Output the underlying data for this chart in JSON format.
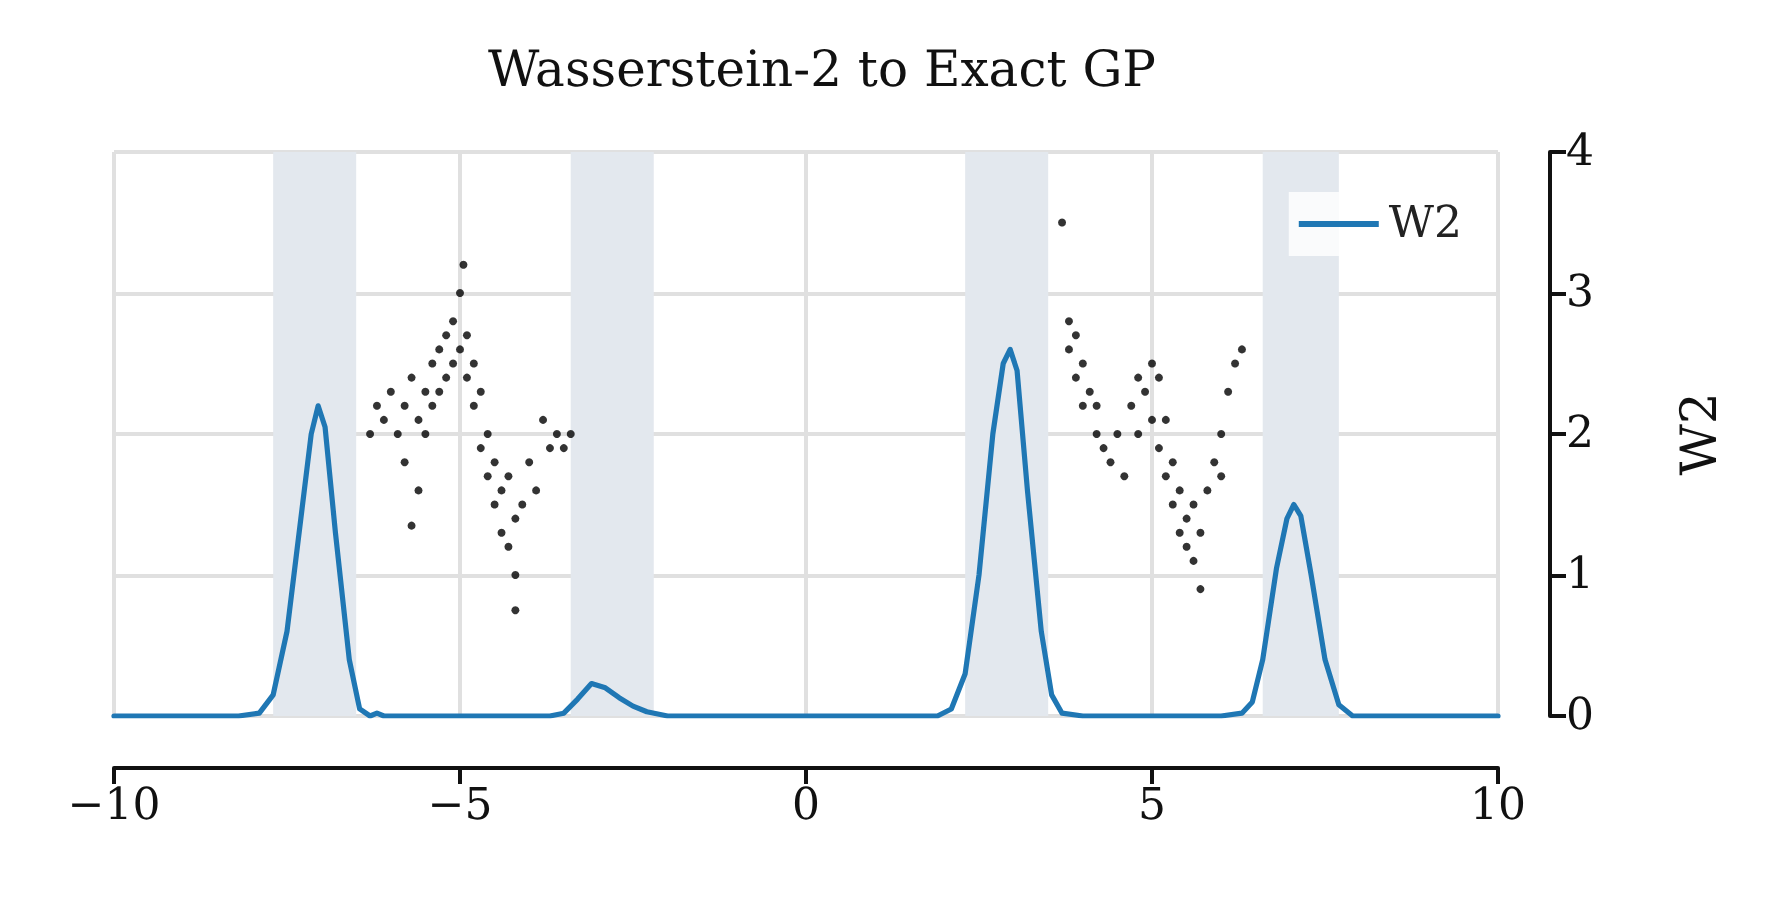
{
  "chart_data": {
    "type": "line",
    "title": "Wasserstein-2 to Exact GP",
    "ylabel": "W2",
    "xlim": [
      -10,
      10
    ],
    "xticks": [
      -10,
      -5,
      0,
      5,
      10
    ],
    "ylim": [
      0,
      4
    ],
    "yticks": [
      0,
      1,
      2,
      3,
      4
    ],
    "grid": true,
    "legend": "top right",
    "bands": [
      {
        "axis": "x",
        "from": -7.7,
        "to": -6.5,
        "color": "#e3e8ee"
      },
      {
        "axis": "x",
        "from": -3.4,
        "to": -2.2,
        "color": "#e3e8ee"
      },
      {
        "axis": "x",
        "from": 2.3,
        "to": 3.5,
        "color": "#e3e8ee"
      },
      {
        "axis": "x",
        "from": 6.6,
        "to": 7.7,
        "color": "#e3e8ee"
      }
    ],
    "series": [
      {
        "type": "scatter",
        "color": "#000000",
        "marker": "circle",
        "x": [
          -6.3,
          -6.2,
          -6.1,
          -6.0,
          -5.9,
          -5.8,
          -5.8,
          -5.7,
          -5.6,
          -5.6,
          -5.5,
          -5.5,
          -5.4,
          -5.4,
          -5.3,
          -5.3,
          -5.2,
          -5.2,
          -5.1,
          -5.1,
          -5.0,
          -5.0,
          -4.95,
          -4.9,
          -4.9,
          -4.8,
          -4.8,
          -4.7,
          -4.7,
          -4.6,
          -4.6,
          -4.5,
          -4.5,
          -4.4,
          -4.4,
          -4.3,
          -4.3,
          -4.2,
          -4.2,
          -4.1,
          -4.0,
          -3.9,
          -3.8,
          -3.7,
          -3.6,
          -3.5,
          -3.4,
          -4.2,
          -5.7,
          3.7,
          3.8,
          3.8,
          3.9,
          3.9,
          4.0,
          4.0,
          4.1,
          4.2,
          4.2,
          4.3,
          4.4,
          4.5,
          4.6,
          4.7,
          4.8,
          4.8,
          4.9,
          5.0,
          5.0,
          5.1,
          5.1,
          5.2,
          5.2,
          5.3,
          5.3,
          5.4,
          5.4,
          5.5,
          5.5,
          5.6,
          5.6,
          5.7,
          5.7,
          5.8,
          5.9,
          6.0,
          6.0,
          6.1,
          6.2,
          6.3
        ],
        "values": [
          2.0,
          2.2,
          2.1,
          2.3,
          2.0,
          2.2,
          1.8,
          2.4,
          2.1,
          1.6,
          2.3,
          2.0,
          2.5,
          2.2,
          2.6,
          2.3,
          2.7,
          2.4,
          2.8,
          2.5,
          3.0,
          2.6,
          3.2,
          2.7,
          2.4,
          2.5,
          2.2,
          2.3,
          1.9,
          2.0,
          1.7,
          1.8,
          1.5,
          1.6,
          1.3,
          1.7,
          1.2,
          1.4,
          1.0,
          1.5,
          1.8,
          1.6,
          2.1,
          1.9,
          2.0,
          1.9,
          2.0,
          0.75,
          1.35,
          3.5,
          2.8,
          2.6,
          2.7,
          2.4,
          2.5,
          2.2,
          2.3,
          2.0,
          2.2,
          1.9,
          1.8,
          2.0,
          1.7,
          2.2,
          2.4,
          2.0,
          2.3,
          2.5,
          2.1,
          2.4,
          1.9,
          2.1,
          1.7,
          1.8,
          1.5,
          1.6,
          1.3,
          1.4,
          1.2,
          1.1,
          1.5,
          0.9,
          1.3,
          1.6,
          1.8,
          2.0,
          1.7,
          2.3,
          2.5,
          2.6
        ]
      },
      {
        "type": "line",
        "name": "W2",
        "color": "#1f77b4",
        "marker": "none",
        "line_style": "solid",
        "x": [
          -10,
          -8.2,
          -7.9,
          -7.7,
          -7.5,
          -7.3,
          -7.15,
          -7.05,
          -6.95,
          -6.8,
          -6.6,
          -6.45,
          -6.3,
          -6.2,
          -6.1,
          -5.0,
          -3.7,
          -3.5,
          -3.3,
          -3.1,
          -2.9,
          -2.7,
          -2.5,
          -2.3,
          -2.0,
          1.9,
          2.1,
          2.3,
          2.5,
          2.7,
          2.85,
          2.95,
          3.05,
          3.2,
          3.4,
          3.55,
          3.7,
          4.0,
          6.0,
          6.3,
          6.45,
          6.6,
          6.8,
          6.95,
          7.05,
          7.15,
          7.3,
          7.5,
          7.7,
          7.9,
          10
        ],
        "values": [
          0,
          0,
          0.02,
          0.15,
          0.6,
          1.4,
          2.0,
          2.2,
          2.05,
          1.3,
          0.4,
          0.05,
          0,
          0.02,
          0,
          0,
          0,
          0.02,
          0.12,
          0.23,
          0.2,
          0.13,
          0.07,
          0.03,
          0,
          0,
          0.05,
          0.3,
          1.0,
          2.0,
          2.5,
          2.6,
          2.45,
          1.6,
          0.6,
          0.15,
          0.02,
          0,
          0,
          0.02,
          0.1,
          0.4,
          1.05,
          1.4,
          1.5,
          1.42,
          1.0,
          0.4,
          0.08,
          0,
          0
        ]
      }
    ]
  }
}
